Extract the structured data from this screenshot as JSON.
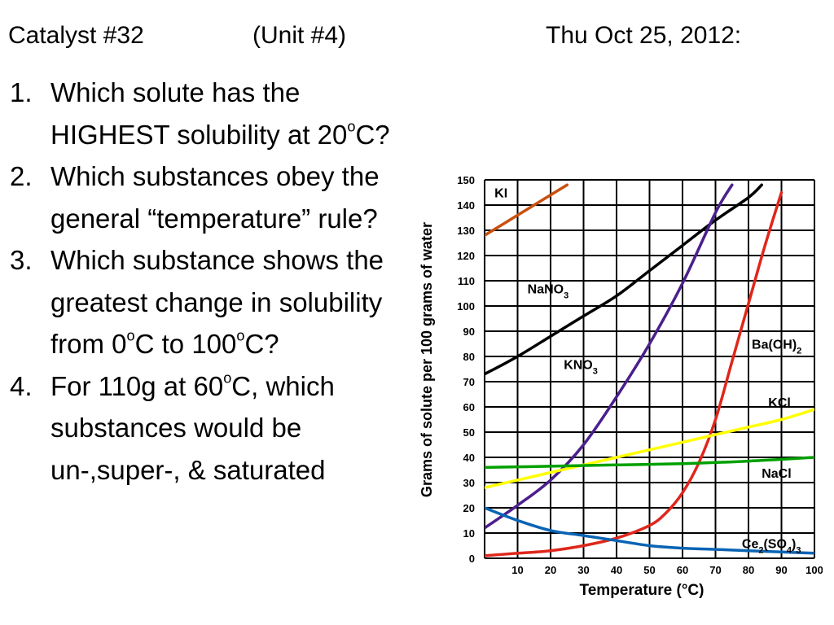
{
  "header": {
    "catalyst": "Catalyst #32",
    "unit": "(Unit #4)",
    "date": "Thu Oct 25, 2012:"
  },
  "questions": [
    {
      "number": "1.",
      "parts": [
        {
          "t": "Which solute has the HIGHEST solubility at 20"
        },
        {
          "t": "o",
          "sup": true
        },
        {
          "t": "C?"
        }
      ]
    },
    {
      "number": "2.",
      "parts": [
        {
          "t": "Which substances obey the general “temperature” rule?"
        }
      ]
    },
    {
      "number": "3.",
      "parts": [
        {
          "t": "Which substance shows the greatest change in solubility from 0"
        },
        {
          "t": "o",
          "sup": true
        },
        {
          "t": "C to 100"
        },
        {
          "t": "o",
          "sup": true
        },
        {
          "t": "C?"
        }
      ]
    },
    {
      "number": "4.",
      "parts": [
        {
          "t": "For 110g at 60"
        },
        {
          "t": "o",
          "sup": true
        },
        {
          "t": "C, which substances would be un-,super-, & saturated"
        }
      ]
    }
  ],
  "chart_data": {
    "type": "line",
    "xlabel": "Temperature (°C)",
    "ylabel": "Grams of solute per 100 grams of water",
    "xlim": [
      0,
      100
    ],
    "ylim": [
      0,
      150
    ],
    "x_ticks": [
      10,
      20,
      30,
      40,
      50,
      60,
      70,
      80,
      90,
      100
    ],
    "y_ticks": [
      0,
      10,
      20,
      30,
      40,
      50,
      60,
      70,
      80,
      90,
      100,
      110,
      120,
      130,
      140,
      150
    ],
    "grid": true,
    "series": [
      {
        "name": "KI",
        "color": "#c8500f",
        "points": [
          [
            0,
            128
          ],
          [
            10,
            136
          ],
          [
            20,
            144
          ],
          [
            25,
            148
          ]
        ]
      },
      {
        "name": "NaNO3",
        "color": "#000000",
        "points": [
          [
            0,
            73
          ],
          [
            10,
            80
          ],
          [
            20,
            88
          ],
          [
            30,
            96
          ],
          [
            40,
            104
          ],
          [
            50,
            114
          ],
          [
            60,
            124
          ],
          [
            70,
            134
          ],
          [
            80,
            143
          ],
          [
            84,
            148
          ]
        ]
      },
      {
        "name": "KNO3",
        "color": "#4b1f8c",
        "points": [
          [
            0,
            12
          ],
          [
            10,
            21
          ],
          [
            20,
            31
          ],
          [
            30,
            45
          ],
          [
            40,
            64
          ],
          [
            50,
            85
          ],
          [
            60,
            109
          ],
          [
            70,
            137
          ],
          [
            75,
            148
          ]
        ]
      },
      {
        "name": "Ba(OH)2",
        "color": "#e0261b",
        "points": [
          [
            0,
            1
          ],
          [
            10,
            2
          ],
          [
            20,
            3
          ],
          [
            30,
            5
          ],
          [
            40,
            8
          ],
          [
            50,
            13
          ],
          [
            55,
            18
          ],
          [
            60,
            26
          ],
          [
            65,
            38
          ],
          [
            70,
            55
          ],
          [
            75,
            78
          ],
          [
            80,
            101
          ],
          [
            85,
            124
          ],
          [
            90,
            145
          ]
        ]
      },
      {
        "name": "KCl",
        "color": "#ffff00",
        "points": [
          [
            0,
            28
          ],
          [
            10,
            31
          ],
          [
            20,
            34
          ],
          [
            30,
            37
          ],
          [
            40,
            40
          ],
          [
            50,
            43
          ],
          [
            60,
            46
          ],
          [
            70,
            49
          ],
          [
            80,
            52
          ],
          [
            90,
            55
          ],
          [
            100,
            59
          ]
        ]
      },
      {
        "name": "NaCl",
        "color": "#00a000",
        "points": [
          [
            0,
            36
          ],
          [
            20,
            36.5
          ],
          [
            40,
            37
          ],
          [
            60,
            37.5
          ],
          [
            80,
            38.5
          ],
          [
            100,
            40
          ]
        ]
      },
      {
        "name": "Ce2(SO4)3",
        "color": "#0a64b4",
        "points": [
          [
            0,
            20
          ],
          [
            10,
            15
          ],
          [
            20,
            11
          ],
          [
            30,
            9
          ],
          [
            40,
            7
          ],
          [
            50,
            5
          ],
          [
            60,
            4
          ],
          [
            70,
            3.5
          ],
          [
            80,
            3
          ],
          [
            90,
            2.5
          ],
          [
            100,
            2
          ]
        ]
      }
    ],
    "curve_labels": [
      {
        "text": "KI",
        "x": 3,
        "y": 143
      },
      {
        "text": "NaNO",
        "sub": "3",
        "x": 13,
        "y": 105
      },
      {
        "text": "KNO",
        "sub": "3",
        "x": 24,
        "y": 75
      },
      {
        "text": "Ba(OH)",
        "sub": "2",
        "x": 81,
        "y": 83
      },
      {
        "text": "KCl",
        "x": 86,
        "y": 60
      },
      {
        "text": "NaCl",
        "x": 84,
        "y": 32
      },
      {
        "text": "Ce",
        "sub": "2",
        "rest": "(SO",
        "sub2": "4",
        "rest2": ")",
        "sub3": "3",
        "x": 78,
        "y": 4
      }
    ]
  }
}
